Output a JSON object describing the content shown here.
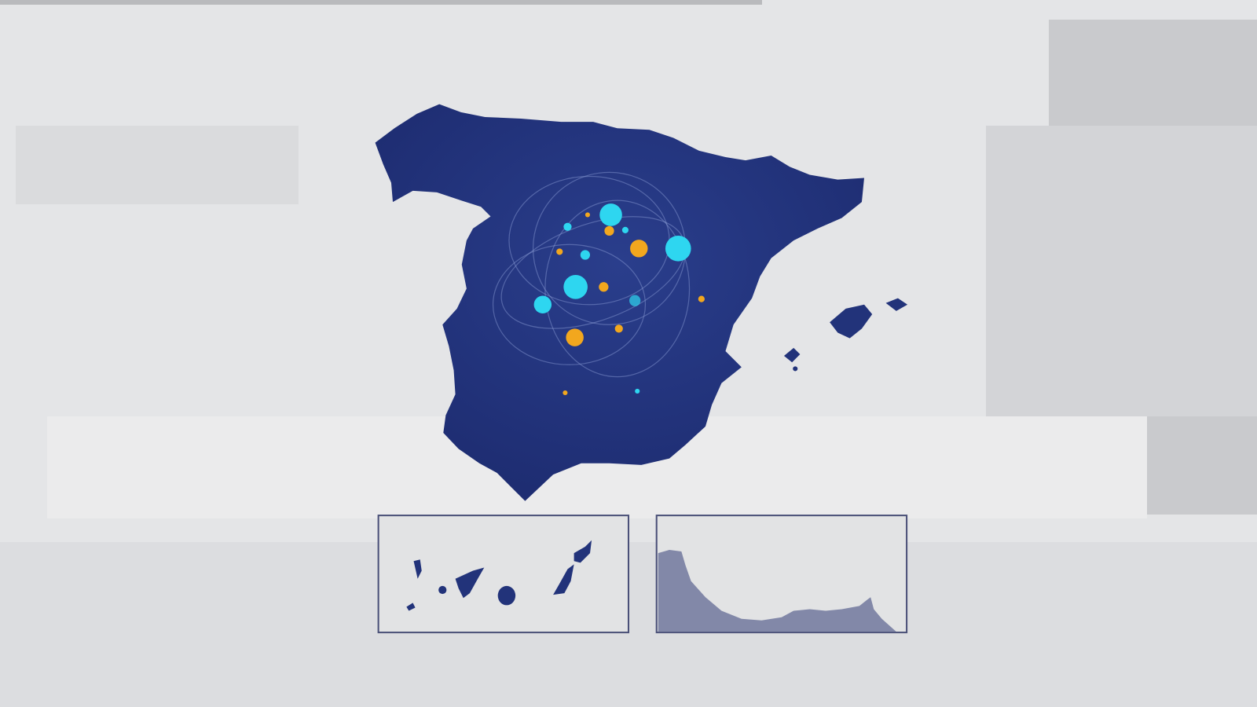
{
  "map": {
    "region": "Spain",
    "insets": [
      "canary-islands",
      "ceuta-melilla-coast"
    ],
    "colors": {
      "background": "#e4e5e7",
      "land": "#22337a",
      "inset_land": "#8288a8",
      "inset_border": "#4a5078",
      "dot_cyan": "#2ed6f0",
      "dot_orange": "#f2a71e"
    },
    "markers": {
      "cyan": 8,
      "orange": 9
    }
  }
}
